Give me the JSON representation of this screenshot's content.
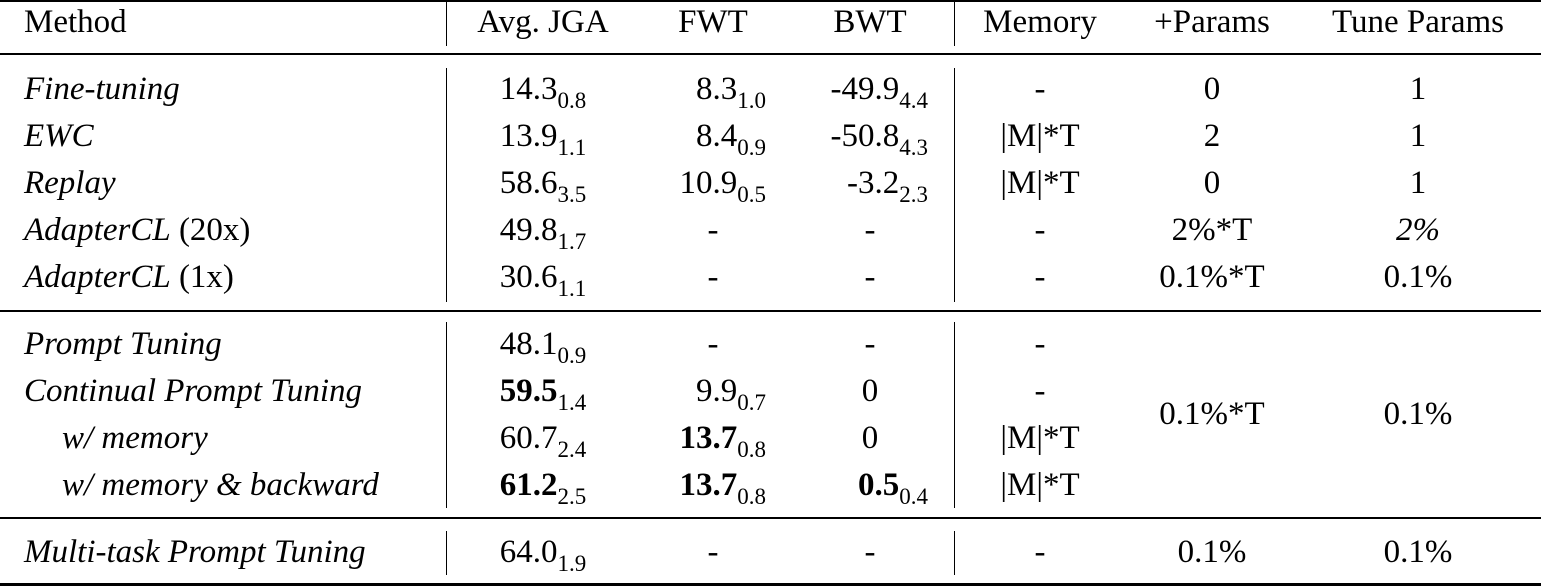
{
  "table": {
    "headers": {
      "method": "Method",
      "avg_jga": "Avg. JGA",
      "fwt": "FWT",
      "bwt": "BWT",
      "memory": "Memory",
      "params": "+Params",
      "tune": "Tune Params"
    },
    "rows": [
      {
        "method": "Fine-tuning",
        "method_suffix": "",
        "jga": "14.3",
        "jga_sd": "0.8",
        "fwt": "8.3",
        "fwt_sd": "1.0",
        "bwt": "-49.9",
        "bwt_sd": "4.4",
        "memory": "-",
        "params": "0",
        "tune": "1"
      },
      {
        "method": "EWC",
        "method_suffix": "",
        "jga": "13.9",
        "jga_sd": "1.1",
        "fwt": "8.4",
        "fwt_sd": "0.9",
        "bwt": "-50.8",
        "bwt_sd": "4.3",
        "memory": "|M|*T",
        "params": "2",
        "tune": "1"
      },
      {
        "method": "Replay",
        "method_suffix": "",
        "jga": "58.6",
        "jga_sd": "3.5",
        "fwt": "10.9",
        "fwt_sd": "0.5",
        "bwt": "-3.2",
        "bwt_sd": "2.3",
        "memory": "|M|*T",
        "params": "0",
        "tune": "1"
      },
      {
        "method": "AdapterCL",
        "method_suffix": " (20x)",
        "jga": "49.8",
        "jga_sd": "1.7",
        "fwt": "-",
        "fwt_sd": "",
        "bwt": "-",
        "bwt_sd": "",
        "memory": "-",
        "params": "2%*T",
        "tune": "2%"
      },
      {
        "method": "AdapterCL",
        "method_suffix": " (1x)",
        "jga": "30.6",
        "jga_sd": "1.1",
        "fwt": "-",
        "fwt_sd": "",
        "bwt": "-",
        "bwt_sd": "",
        "memory": "-",
        "params": "0.1%*T",
        "tune": "0.1%"
      },
      {
        "method": "Prompt Tuning",
        "method_suffix": "",
        "jga": "48.1",
        "jga_sd": "0.9",
        "fwt": "-",
        "fwt_sd": "",
        "bwt": "-",
        "bwt_sd": "",
        "memory": "-"
      },
      {
        "method": "Continual Prompt Tuning",
        "method_suffix": "",
        "jga": "59.5",
        "jga_sd": "1.4",
        "fwt": "9.9",
        "fwt_sd": "0.7",
        "bwt": "0",
        "bwt_sd": "",
        "memory": "-"
      },
      {
        "method": "w/ memory",
        "method_suffix": "",
        "jga": "60.7",
        "jga_sd": "2.4",
        "fwt": "13.7",
        "fwt_sd": "0.8",
        "bwt": "0",
        "bwt_sd": "",
        "memory": "|M|*T"
      },
      {
        "method": "w/ memory & backward",
        "method_suffix": "",
        "jga": "61.2",
        "jga_sd": "2.5",
        "fwt": "13.7",
        "fwt_sd": "0.8",
        "bwt": "0.5",
        "bwt_sd": "0.4",
        "memory": "|M|*T"
      },
      {
        "method": "Multi-task Prompt Tuning",
        "method_suffix": "",
        "jga": "64.0",
        "jga_sd": "1.9",
        "fwt": "-",
        "fwt_sd": "",
        "bwt": "-",
        "bwt_sd": "",
        "memory": "-",
        "params": "0.1%",
        "tune": "0.1%"
      }
    ],
    "group_prompt_params": "0.1%*T",
    "group_prompt_tune": "0.1%"
  }
}
